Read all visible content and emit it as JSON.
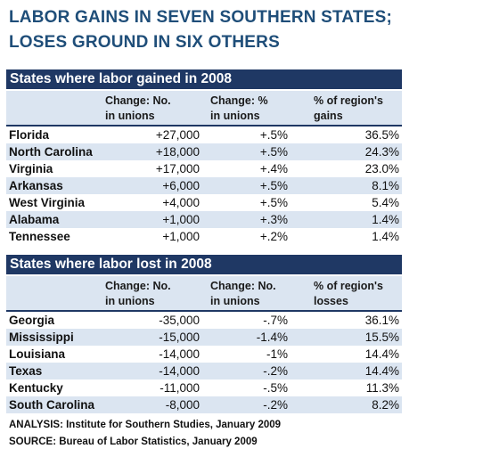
{
  "title_line1": "LABOR GAINS IN SEVEN SOUTHERN STATES;",
  "title_line2": "LOSES GROUND IN SIX OTHERS",
  "chart_data": [
    {
      "type": "table",
      "title": "States where labor gained in 2008",
      "columns": [
        "",
        "Change: No.\nin unions",
        "Change: %\nin unions",
        "% of region's\ngains"
      ],
      "rows": [
        [
          "Florida",
          "+27,000",
          "+.5%",
          "36.5%"
        ],
        [
          "North Carolina",
          "+18,000",
          "+.5%",
          "24.3%"
        ],
        [
          "Virginia",
          "+17,000",
          "+.4%",
          "23.0%"
        ],
        [
          "Arkansas",
          "+6,000",
          "+.5%",
          "8.1%"
        ],
        [
          "West Virginia",
          "+4,000",
          "+.5%",
          "5.4%"
        ],
        [
          "Alabama",
          "+1,000",
          "+.3%",
          "1.4%"
        ],
        [
          "Tennessee",
          "+1,000",
          "+.2%",
          "1.4%"
        ]
      ]
    },
    {
      "type": "table",
      "title": "States where labor lost in 2008",
      "columns": [
        "",
        "Change: No.\nin unions",
        "Change: No.\nin unions",
        "% of region's\nlosses"
      ],
      "rows": [
        [
          "Georgia",
          "-35,000",
          "-.7%",
          "36.1%"
        ],
        [
          "Mississippi",
          "-15,000",
          "-1.4%",
          "15.5%"
        ],
        [
          "Louisiana",
          "-14,000",
          "-1%",
          "14.4%"
        ],
        [
          "Texas",
          "-14,000",
          "-.2%",
          "14.4%"
        ],
        [
          "Kentucky",
          "-11,000",
          "-.5%",
          "11.3%"
        ],
        [
          "South Carolina",
          "-8,000",
          "-.2%",
          "8.2%"
        ]
      ]
    }
  ],
  "footnotes": {
    "analysis": "ANALYSIS: Institute for Southern Studies, January 2009",
    "source": "SOURCE: Bureau of Labor Statistics, January 2009"
  },
  "colors": {
    "title": "#1f4e79",
    "table_header_bg": "#1f3864",
    "band": "#dbe5f1"
  }
}
